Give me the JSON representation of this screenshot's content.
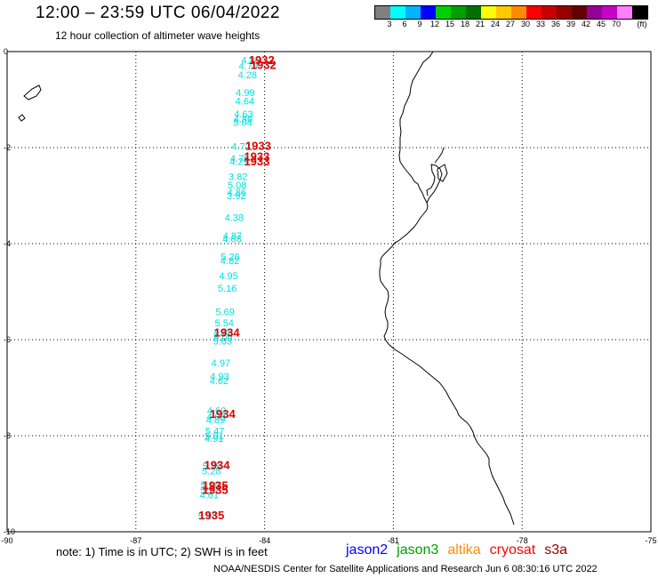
{
  "title": "12:00 – 23:59 UTC 06/04/2022",
  "subtitle": "12 hour collection of altimeter wave heights",
  "colorbar": {
    "unit": "(ft)",
    "colors": [
      "#808080",
      "#00ffff",
      "#00b4ff",
      "#0000ff",
      "#00d000",
      "#00a000",
      "#007000",
      "#ffff00",
      "#ffc800",
      "#ff8c00",
      "#ff0000",
      "#c80000",
      "#960000",
      "#640000",
      "#960096",
      "#c800c8",
      "#ff80ff",
      "#000000"
    ],
    "labels": [
      "3",
      "6",
      "9",
      "12",
      "15",
      "18",
      "21",
      "24",
      "27",
      "30",
      "33",
      "36",
      "39",
      "42",
      "45",
      "70",
      "(ft)"
    ]
  },
  "axes": {
    "lon_labels": [
      "-90",
      "-87",
      "-84",
      "-81",
      "-78",
      "-75"
    ],
    "lat_labels": [
      "0",
      "-2",
      "-4",
      "-6",
      "-8",
      "-10"
    ]
  },
  "observations": [
    {
      "lat": -0.18,
      "lon": -84.32,
      "value": "4.80"
    },
    {
      "lat": -0.3,
      "lon": -84.38,
      "value": "4.79"
    },
    {
      "lat": -0.48,
      "lon": -84.4,
      "value": "4.28"
    },
    {
      "lat": -0.85,
      "lon": -84.45,
      "value": "4.99"
    },
    {
      "lat": -1.03,
      "lon": -84.46,
      "value": "4.64"
    },
    {
      "lat": -1.3,
      "lon": -84.49,
      "value": "4.63"
    },
    {
      "lat": -1.4,
      "lon": -84.5,
      "value": "4.86"
    },
    {
      "lat": -1.47,
      "lon": -84.51,
      "value": "5.04"
    },
    {
      "lat": -1.97,
      "lon": -84.55,
      "value": "4.72"
    },
    {
      "lat": -2.22,
      "lon": -84.58,
      "value": "4.75"
    },
    {
      "lat": -2.29,
      "lon": -84.59,
      "value": "4.29"
    },
    {
      "lat": -2.6,
      "lon": -84.62,
      "value": "3.82"
    },
    {
      "lat": -2.78,
      "lon": -84.64,
      "value": "5.08"
    },
    {
      "lat": -2.93,
      "lon": -84.65,
      "value": "4.86"
    },
    {
      "lat": -3.0,
      "lon": -84.66,
      "value": "3.92"
    },
    {
      "lat": -3.45,
      "lon": -84.71,
      "value": "4.38"
    },
    {
      "lat": -3.83,
      "lon": -84.75,
      "value": "4.87"
    },
    {
      "lat": -3.9,
      "lon": -84.76,
      "value": "4.68"
    },
    {
      "lat": -4.27,
      "lon": -84.8,
      "value": "5.26"
    },
    {
      "lat": -4.35,
      "lon": -84.81,
      "value": "4.82"
    },
    {
      "lat": -4.67,
      "lon": -84.84,
      "value": "4.95"
    },
    {
      "lat": -4.93,
      "lon": -84.87,
      "value": "5.16"
    },
    {
      "lat": -5.42,
      "lon": -84.92,
      "value": "5.69"
    },
    {
      "lat": -5.65,
      "lon": -84.94,
      "value": "5.54"
    },
    {
      "lat": -5.83,
      "lon": -84.96,
      "value": "4.86"
    },
    {
      "lat": -5.95,
      "lon": -84.97,
      "value": "5.00"
    },
    {
      "lat": -6.03,
      "lon": -84.98,
      "value": "5.03"
    },
    {
      "lat": -6.48,
      "lon": -85.02,
      "value": "4.97"
    },
    {
      "lat": -6.76,
      "lon": -85.05,
      "value": "4.93"
    },
    {
      "lat": -6.85,
      "lon": -85.06,
      "value": "4.62"
    },
    {
      "lat": -7.47,
      "lon": -85.12,
      "value": "4.60"
    },
    {
      "lat": -7.6,
      "lon": -85.13,
      "value": "4.98"
    },
    {
      "lat": -7.67,
      "lon": -85.14,
      "value": "4.89"
    },
    {
      "lat": -7.9,
      "lon": -85.16,
      "value": "5.47"
    },
    {
      "lat": -8.0,
      "lon": -85.17,
      "value": "5.01"
    },
    {
      "lat": -8.06,
      "lon": -85.18,
      "value": "4.91"
    },
    {
      "lat": -8.63,
      "lon": -85.23,
      "value": "5.25"
    },
    {
      "lat": -8.73,
      "lon": -85.24,
      "value": "5.28"
    },
    {
      "lat": -9.02,
      "lon": -85.27,
      "value": "5.19"
    },
    {
      "lat": -9.13,
      "lon": -85.28,
      "value": "5.17"
    },
    {
      "lat": -9.23,
      "lon": -85.29,
      "value": "4.61"
    },
    {
      "lat": -9.67,
      "lon": -85.33,
      "value": "5.18"
    }
  ],
  "pass_labels": [
    {
      "lat": -0.17,
      "lon": -84.07,
      "text": "1932"
    },
    {
      "lat": -0.27,
      "lon": -84.03,
      "text": "1932"
    },
    {
      "lat": -1.95,
      "lon": -84.15,
      "text": "1933"
    },
    {
      "lat": -2.18,
      "lon": -84.18,
      "text": "1933"
    },
    {
      "lat": -2.28,
      "lon": -84.18,
      "text": "1933"
    },
    {
      "lat": -5.84,
      "lon": -84.88,
      "text": "1934"
    },
    {
      "lat": -7.54,
      "lon": -84.98,
      "text": "1934"
    },
    {
      "lat": -8.6,
      "lon": -85.11,
      "text": "1934"
    },
    {
      "lat": -9.03,
      "lon": -85.15,
      "text": "1935"
    },
    {
      "lat": -9.12,
      "lon": -85.15,
      "text": "1935"
    },
    {
      "lat": -9.65,
      "lon": -85.24,
      "text": "1935"
    }
  ],
  "colors": {
    "observation": "#00e0e0",
    "pass": "#e00000",
    "coast": "#000000"
  },
  "footer_note": "note: 1) Time is in UTC; 2) SWH is in feet",
  "legend": [
    {
      "label": "jason2",
      "color": "#0000ff"
    },
    {
      "label": "jason3",
      "color": "#00a000"
    },
    {
      "label": "altika",
      "color": "#ff8c00"
    },
    {
      "label": "cryosat",
      "color": "#ff0000"
    },
    {
      "label": "s3a",
      "color": "#960000"
    }
  ],
  "credit": "NOAA/NESDIS Center for Satellite Applications and Research   Jun  6 08:30:16 UTC 2022"
}
